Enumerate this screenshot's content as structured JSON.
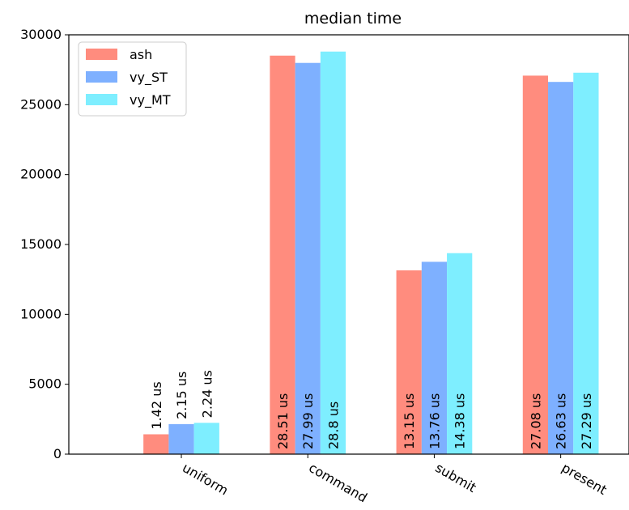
{
  "chart_data": {
    "type": "bar",
    "title": "median time",
    "xlabel": "",
    "ylabel": "",
    "categories": [
      "uniform",
      "command",
      "submit",
      "present"
    ],
    "series": [
      {
        "name": "ash",
        "color": "#ff8c7e",
        "values": [
          1420,
          28510,
          13150,
          27080
        ],
        "labels": [
          "1.42 us",
          "28.51 us",
          "13.15 us",
          "27.08 us"
        ]
      },
      {
        "name": "vy_ST",
        "color": "#7eb0ff",
        "values": [
          2150,
          27990,
          13760,
          26630
        ],
        "labels": [
          "2.15 us",
          "27.99 us",
          "13.76 us",
          "26.63 us"
        ]
      },
      {
        "name": "vy_MT",
        "color": "#7eeeff",
        "values": [
          2240,
          28800,
          14380,
          27290
        ],
        "labels": [
          "2.24 us",
          "28.8 us",
          "14.38 us",
          "27.29 us"
        ]
      }
    ],
    "ylim": [
      0,
      30000
    ],
    "yticks": [
      0,
      5000,
      10000,
      15000,
      20000,
      25000,
      30000
    ],
    "ytick_labels": [
      "0",
      "5000",
      "10000",
      "15000",
      "20000",
      "25000",
      "30000"
    ],
    "grid": false,
    "legend_position": "top-left"
  }
}
